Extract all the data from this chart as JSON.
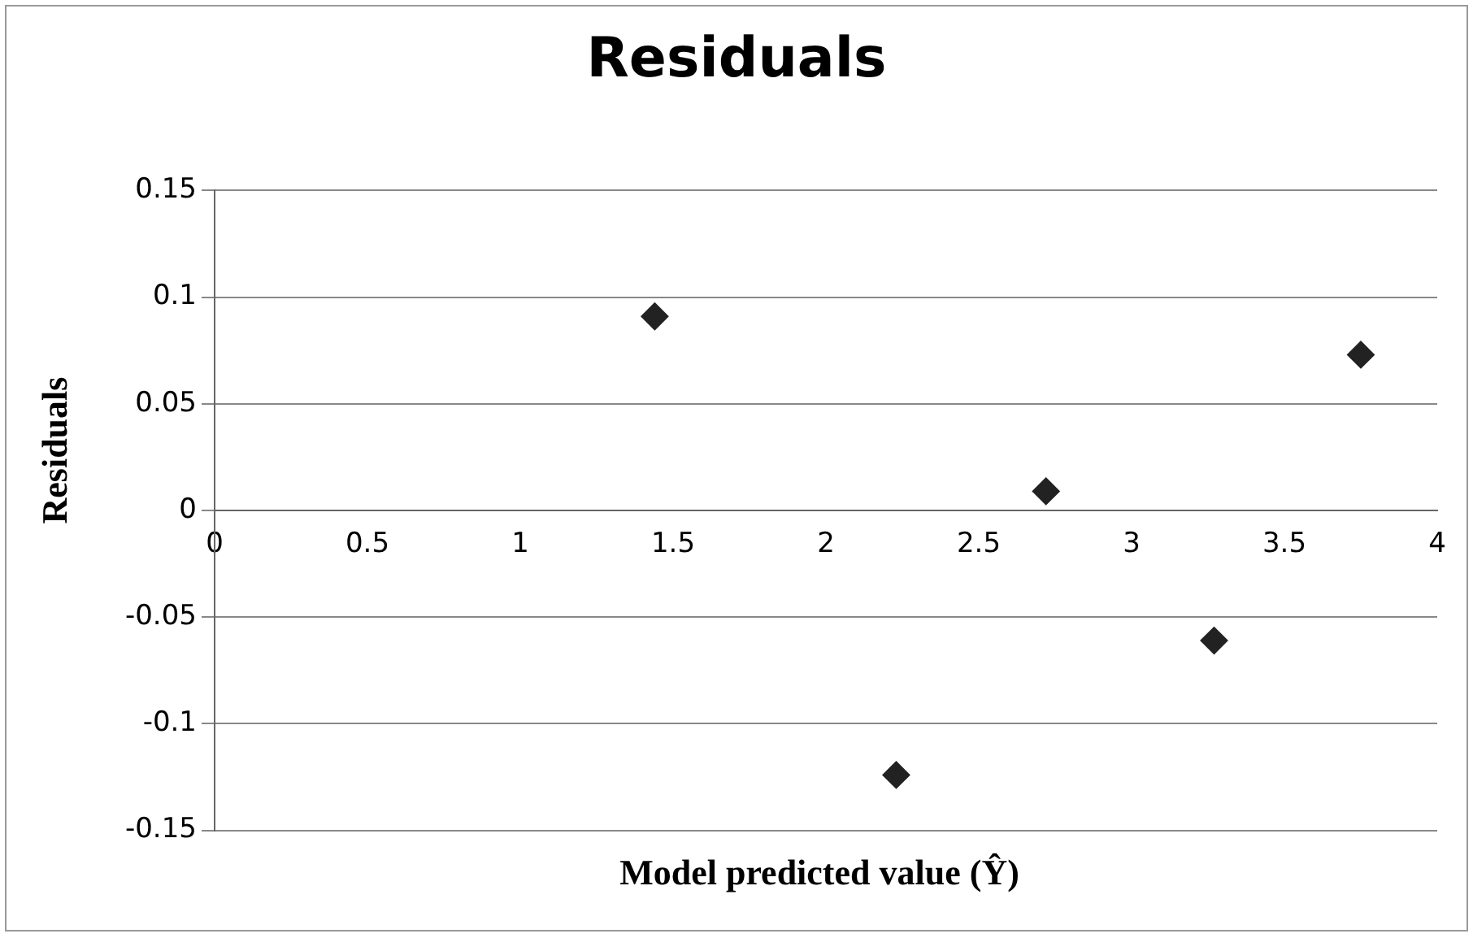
{
  "chart_data": {
    "type": "scatter",
    "title": "Residuals",
    "xlabel": "Model predicted value (Ŷ)",
    "ylabel": "Residuals",
    "x": [
      1.44,
      2.23,
      2.72,
      3.27,
      3.75
    ],
    "series": [
      {
        "color": "#222222",
        "values": [
          0.091,
          -0.124,
          0.009,
          -0.061,
          0.073
        ]
      }
    ],
    "xlim": [
      0,
      4
    ],
    "xticks": [
      0,
      0.5,
      1,
      1.5,
      2,
      2.5,
      3,
      3.5,
      4
    ],
    "ylim": [
      -0.15,
      0.15
    ],
    "yticks": [
      -0.15,
      -0.1,
      -0.05,
      0,
      0.05,
      0.1,
      0.15
    ],
    "grid": "y",
    "legend": false,
    "marker": "diamond"
  }
}
